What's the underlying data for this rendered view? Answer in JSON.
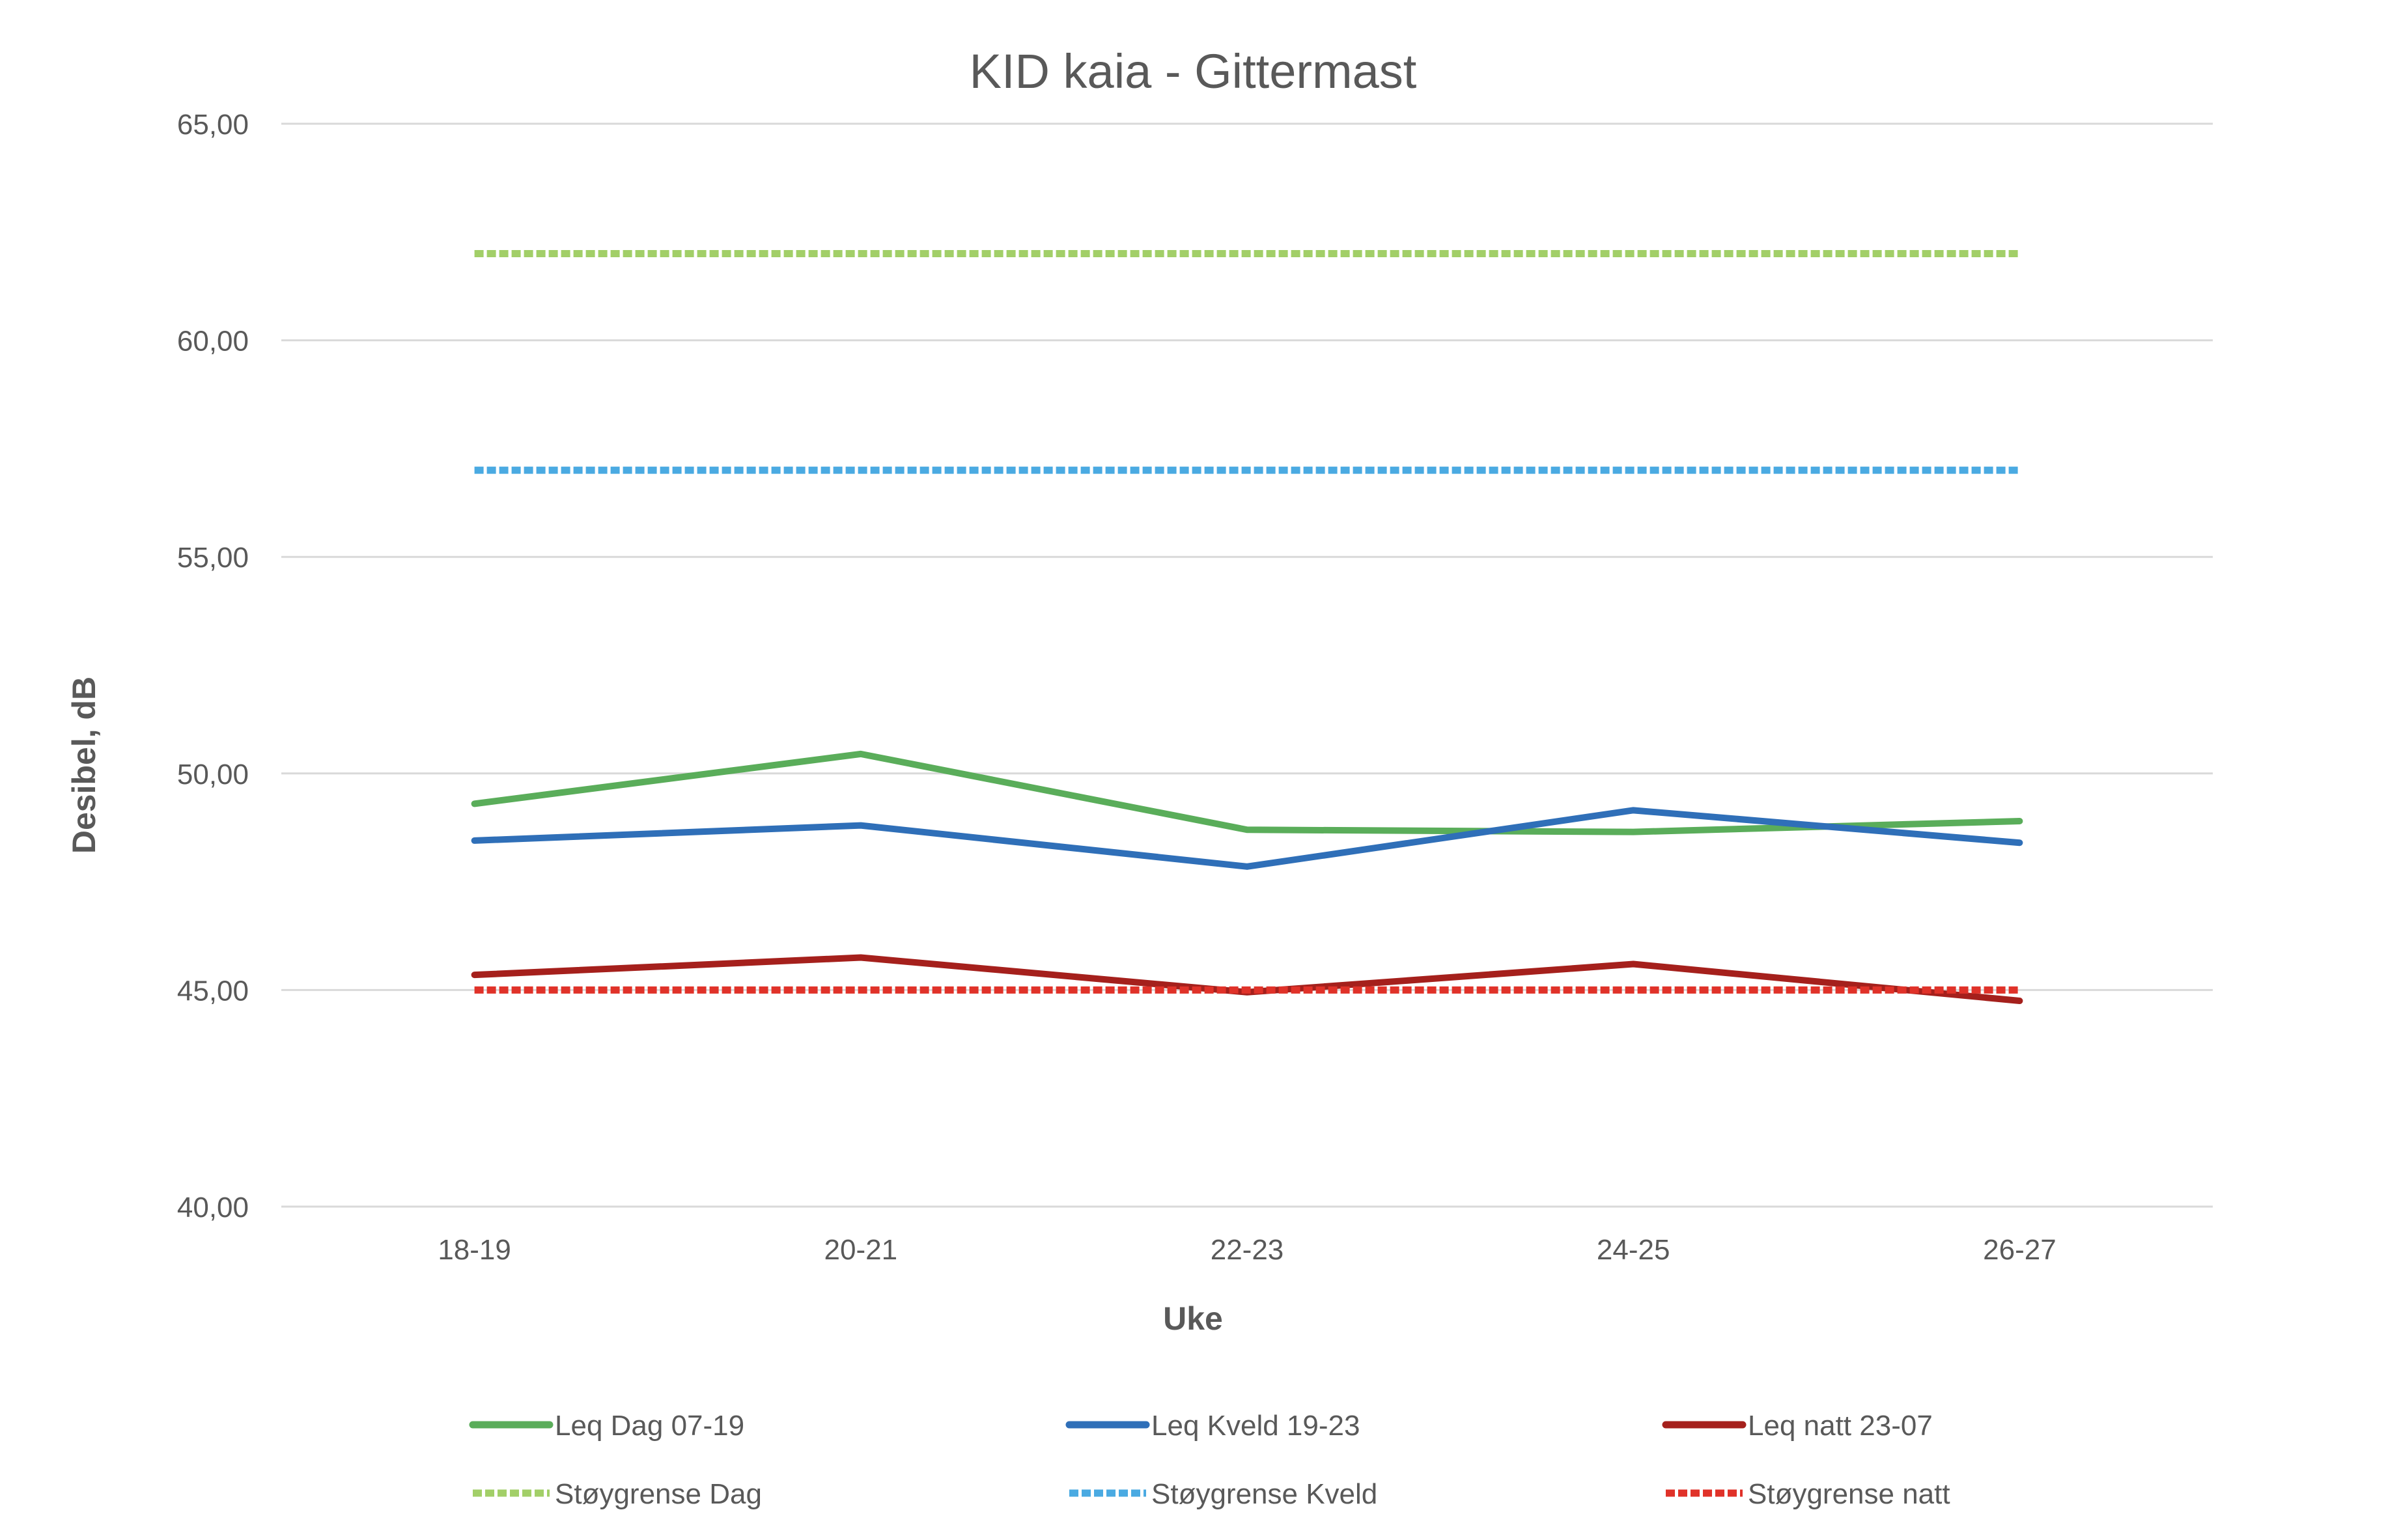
{
  "chart_data": {
    "type": "line",
    "title": "KID kaia - Gittermast",
    "xlabel": "Uke",
    "ylabel": "Desibel, dB",
    "categories": [
      "18-19",
      "20-21",
      "22-23",
      "24-25",
      "26-27"
    ],
    "ylim": [
      40,
      65
    ],
    "yticks": [
      "40,00",
      "45,00",
      "50,00",
      "55,00",
      "60,00",
      "65,00"
    ],
    "grid": true,
    "legend_position": "bottom",
    "series": [
      {
        "name": "Leq Dag 07-19",
        "values": [
          49.3,
          50.45,
          48.7,
          48.65,
          48.9
        ],
        "color": "#5aad5a",
        "dashed": false
      },
      {
        "name": "Leq Kveld 19-23",
        "values": [
          48.45,
          48.8,
          47.85,
          49.15,
          48.4
        ],
        "color": "#2f6fb8",
        "dashed": false
      },
      {
        "name": "Leq natt 23-07",
        "values": [
          45.35,
          45.75,
          44.95,
          45.6,
          44.75
        ],
        "color": "#a5201c",
        "dashed": false
      },
      {
        "name": "Støygrense Dag",
        "values": [
          62,
          62,
          62,
          62,
          62
        ],
        "color": "#a2cf68",
        "dashed": true
      },
      {
        "name": "Støygrense Kveld",
        "values": [
          57,
          57,
          57,
          57,
          57
        ],
        "color": "#4aaae2",
        "dashed": true
      },
      {
        "name": "Støygrense natt",
        "values": [
          45,
          45,
          45,
          45,
          45
        ],
        "color": "#e03229",
        "dashed": true
      }
    ]
  }
}
